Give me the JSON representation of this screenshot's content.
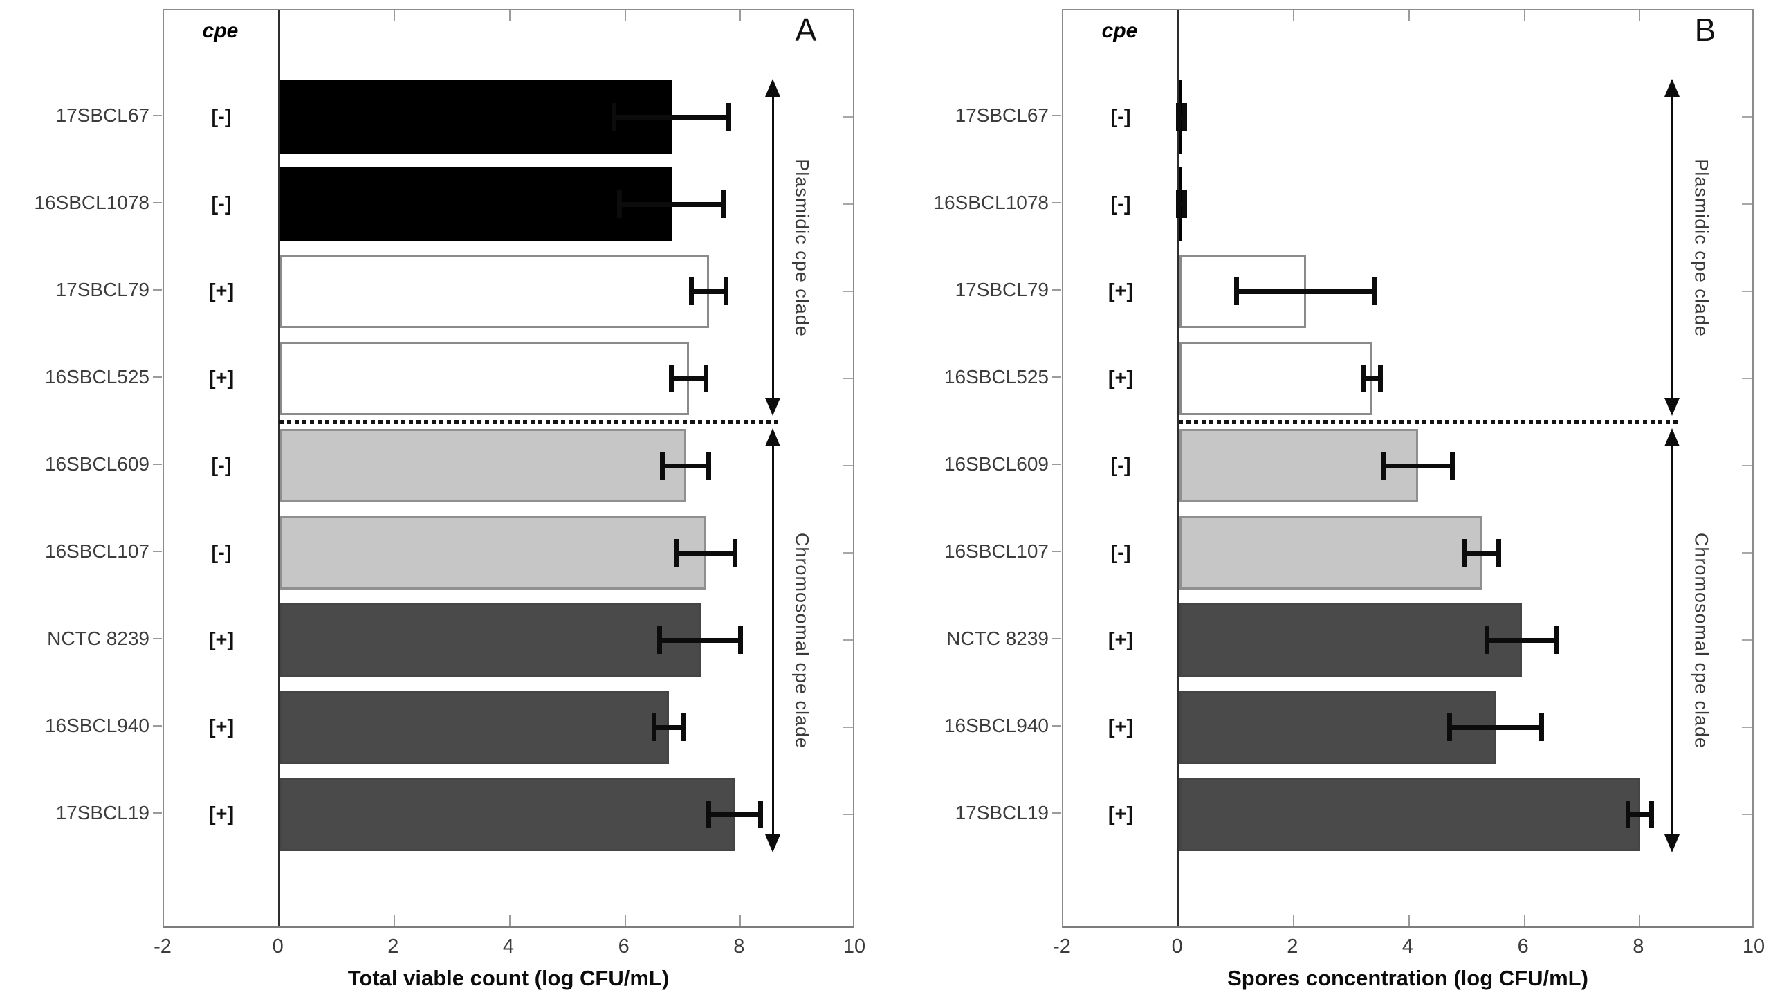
{
  "figure_title": "",
  "colors": {
    "background": "#ffffff",
    "axis_border": "#8c8c8c",
    "zero_line": "#2e2e2e",
    "tick": "#9b9b9b",
    "error_bar": "#0c0c0c",
    "text": "#3c3c3c"
  },
  "bar_groups": [
    {
      "name": "black",
      "fill": "#000000",
      "edge": "#000000"
    },
    {
      "name": "white",
      "fill": "#ffffff",
      "edge": "#8a8a8a"
    },
    {
      "name": "light-gray",
      "fill": "#c6c6c6",
      "edge": "#8f8f8f"
    },
    {
      "name": "dark-gray",
      "fill": "#4a4a4a",
      "edge": "#454545"
    }
  ],
  "bar_group_index": [
    0,
    0,
    1,
    1,
    2,
    2,
    3,
    3,
    3
  ],
  "chart_data": [
    {
      "type": "bar",
      "orientation": "horizontal",
      "panel_letter": "A",
      "column_header": "cpe",
      "xlabel": "Total viable count (log CFU/mL)",
      "xlim": [
        -2,
        10
      ],
      "xticks": [
        -2,
        0,
        2,
        4,
        6,
        8,
        10
      ],
      "inner_tick_values": [
        2,
        4,
        6,
        8
      ],
      "grid": false,
      "categories": [
        "17SBCL67",
        "16SBCL1078",
        "17SBCL79",
        "16SBCL525",
        "16SBCL609",
        "16SBCL107",
        "NCTC 8239",
        "16SBCL940",
        "17SBCL19"
      ],
      "cpe_status": [
        "[-]",
        "[-]",
        "[+]",
        "[+]",
        "[-]",
        "[-]",
        "[+]",
        "[+]",
        "[+]"
      ],
      "values": [
        6.8,
        6.8,
        7.45,
        7.1,
        7.05,
        7.4,
        7.3,
        6.75,
        7.9
      ],
      "errors": [
        1.0,
        0.9,
        0.3,
        0.3,
        0.4,
        0.5,
        0.7,
        0.25,
        0.45
      ],
      "annotations": {
        "separator_after_row": 3,
        "clades": [
          {
            "label": "Plasmidic cpe clade",
            "from_row": 0,
            "to_row": 3
          },
          {
            "label": "Chromosomal cpe clade",
            "from_row": 4,
            "to_row": 8
          }
        ]
      }
    },
    {
      "type": "bar",
      "orientation": "horizontal",
      "panel_letter": "B",
      "column_header": "cpe",
      "xlabel": "Spores concentration (log CFU/mL)",
      "xlim": [
        -2,
        10
      ],
      "xticks": [
        -2,
        0,
        2,
        4,
        6,
        8,
        10
      ],
      "inner_tick_values": [
        2,
        4,
        6,
        8
      ],
      "grid": false,
      "categories": [
        "17SBCL67",
        "16SBCL1078",
        "17SBCL79",
        "16SBCL525",
        "16SBCL609",
        "16SBCL107",
        "NCTC 8239",
        "16SBCL940",
        "17SBCL19"
      ],
      "cpe_status": [
        "[-]",
        "[-]",
        "[+]",
        "[+]",
        "[-]",
        "[-]",
        "[+]",
        "[+]",
        "[+]"
      ],
      "values": [
        0.05,
        0.05,
        2.2,
        3.35,
        4.15,
        5.25,
        5.95,
        5.5,
        8.0
      ],
      "errors": [
        0.05,
        0.05,
        1.2,
        0.15,
        0.6,
        0.3,
        0.6,
        0.8,
        0.2
      ],
      "annotations": {
        "separator_after_row": 3,
        "clades": [
          {
            "label": "Plasmidic cpe clade",
            "from_row": 0,
            "to_row": 3
          },
          {
            "label": "Chromosomal cpe clade",
            "from_row": 4,
            "to_row": 8
          }
        ]
      }
    }
  ]
}
